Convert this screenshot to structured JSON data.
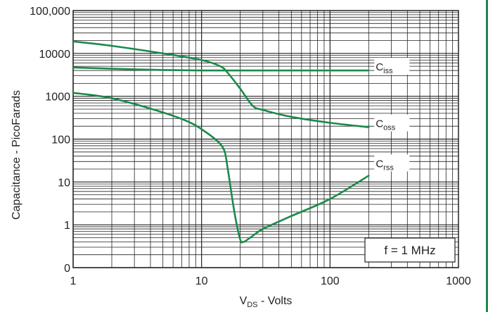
{
  "chart_data": {
    "type": "line",
    "xlabel_main": "V",
    "xlabel_sub": "DS",
    "xlabel_rest": " - Volts",
    "ylabel": "Capacitance - PicoFarads",
    "x_scale": "log",
    "y_scale": "log",
    "xlim": [
      1,
      1000
    ],
    "ylim": [
      0.1,
      100000
    ],
    "x_ticks": [
      {
        "value": 1,
        "label": "1"
      },
      {
        "value": 10,
        "label": "10"
      },
      {
        "value": 100,
        "label": "100"
      },
      {
        "value": 1000,
        "label": "1000"
      }
    ],
    "y_ticks": [
      {
        "value": 0.1,
        "label": "0"
      },
      {
        "value": 1,
        "label": "1"
      },
      {
        "value": 10,
        "label": "10"
      },
      {
        "value": 100,
        "label": "100"
      },
      {
        "value": 1000,
        "label": "1000"
      },
      {
        "value": 10000,
        "label": "10000"
      },
      {
        "value": 100000,
        "label": "100,000"
      }
    ],
    "grid": true,
    "annotation": "f = 1 MHz",
    "series": [
      {
        "name": "C",
        "name_sub": "iss",
        "x": [
          1,
          2,
          5,
          10,
          15,
          20,
          30,
          50,
          100,
          200
        ],
        "y": [
          4700,
          4400,
          4100,
          4000,
          4000,
          4000,
          4000,
          4000,
          4000,
          4000
        ]
      },
      {
        "name": "C",
        "name_sub": "oss",
        "x": [
          1,
          2,
          5,
          10,
          14,
          16,
          20,
          25,
          30,
          50,
          100,
          200
        ],
        "y": [
          19000,
          15000,
          10000,
          7000,
          5000,
          3500,
          1500,
          600,
          480,
          330,
          240,
          190
        ]
      },
      {
        "name": "C",
        "name_sub": "rss",
        "x": [
          1,
          2,
          5,
          8,
          10,
          13,
          15,
          16,
          18,
          20,
          21,
          22,
          25,
          30,
          50,
          100,
          200
        ],
        "y": [
          1200,
          900,
          420,
          250,
          170,
          95,
          55,
          20,
          2,
          0.45,
          0.4,
          0.42,
          0.55,
          0.8,
          1.6,
          4,
          14
        ]
      }
    ],
    "colors": {
      "curve": "#1a8a4a",
      "grid": "#222222"
    }
  }
}
